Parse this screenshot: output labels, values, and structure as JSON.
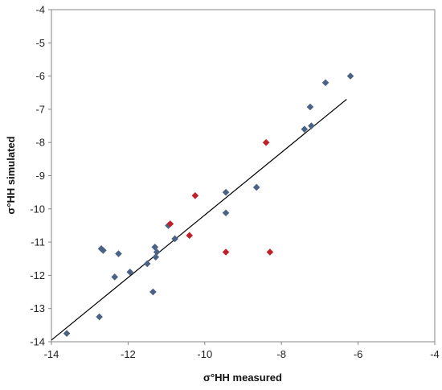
{
  "chart_data": {
    "type": "scatter",
    "title": "",
    "xlabel": "σ°HH measured",
    "ylabel": "σ°HH simulated",
    "xlim": [
      -14,
      -4
    ],
    "ylim": [
      -14,
      -4
    ],
    "xticks": [
      -14,
      -12,
      -10,
      -8,
      -6,
      -4
    ],
    "yticks": [
      -14,
      -13,
      -12,
      -11,
      -10,
      -9,
      -8,
      -7,
      -6,
      -5,
      -4
    ],
    "grid": false,
    "legend": "none",
    "series": [
      {
        "color": "#4a6283",
        "marker": "diamond",
        "points": [
          {
            "x": -13.6,
            "y": -13.75
          },
          {
            "x": -12.75,
            "y": -13.25
          },
          {
            "x": -12.7,
            "y": -11.2
          },
          {
            "x": -12.65,
            "y": -11.25
          },
          {
            "x": -12.35,
            "y": -12.05
          },
          {
            "x": -12.25,
            "y": -11.35
          },
          {
            "x": -11.95,
            "y": -11.9
          },
          {
            "x": -11.5,
            "y": -11.65
          },
          {
            "x": -11.35,
            "y": -12.5
          },
          {
            "x": -11.3,
            "y": -11.15
          },
          {
            "x": -11.28,
            "y": -11.45
          },
          {
            "x": -11.25,
            "y": -11.3
          },
          {
            "x": -10.95,
            "y": -10.5
          },
          {
            "x": -10.78,
            "y": -10.9
          },
          {
            "x": -9.45,
            "y": -9.5
          },
          {
            "x": -9.45,
            "y": -10.12
          },
          {
            "x": -8.65,
            "y": -9.35
          },
          {
            "x": -7.4,
            "y": -7.6
          },
          {
            "x": -7.25,
            "y": -6.93
          },
          {
            "x": -7.22,
            "y": -7.5
          },
          {
            "x": -6.85,
            "y": -6.2
          },
          {
            "x": -6.2,
            "y": -6.0
          }
        ]
      },
      {
        "color": "#c0202a",
        "marker": "diamond",
        "points": [
          {
            "x": -10.9,
            "y": -10.45
          },
          {
            "x": -10.4,
            "y": -10.8
          },
          {
            "x": -10.25,
            "y": -9.6
          },
          {
            "x": -9.45,
            "y": -11.3
          },
          {
            "x": -8.4,
            "y": -8.0
          },
          {
            "x": -8.3,
            "y": -11.3
          }
        ]
      }
    ],
    "trendline": {
      "x": [
        -14,
        -6.3
      ],
      "y": [
        -13.95,
        -6.7
      ],
      "color": "#000000"
    }
  }
}
